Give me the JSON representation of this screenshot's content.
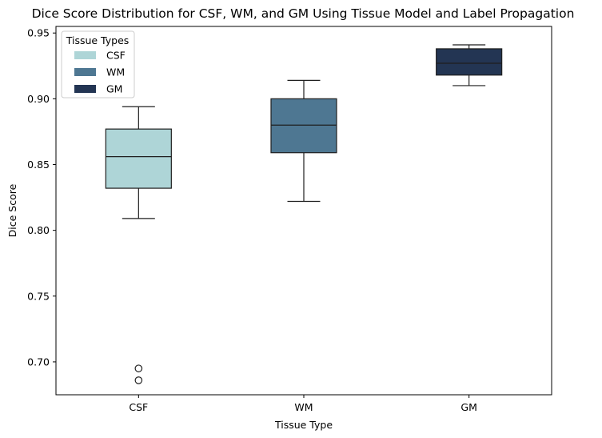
{
  "chart_data": {
    "type": "box",
    "title": "Dice Score Distribution for CSF, WM, and GM Using Tissue Model and Label Propagation",
    "xlabel": "Tissue Type",
    "ylabel": "Dice Score",
    "ylim": [
      0.675,
      0.955
    ],
    "yticks": [
      "0.70",
      "0.75",
      "0.80",
      "0.85",
      "0.90",
      "0.95"
    ],
    "grid": false,
    "legend": {
      "title": "Tissue Types",
      "position": "top-left",
      "entries": [
        "CSF",
        "WM",
        "GM"
      ]
    },
    "categories": [
      "CSF",
      "WM",
      "GM"
    ],
    "boxes": [
      {
        "category": "CSF",
        "color": "#aed5d7",
        "whisker_low": 0.809,
        "q1": 0.832,
        "median": 0.856,
        "q3": 0.877,
        "whisker_high": 0.894,
        "outliers": [
          0.695,
          0.686
        ]
      },
      {
        "category": "WM",
        "color": "#4e7792",
        "whisker_low": 0.822,
        "q1": 0.859,
        "median": 0.88,
        "q3": 0.9,
        "whisker_high": 0.914,
        "outliers": []
      },
      {
        "category": "GM",
        "color": "#233553",
        "whisker_low": 0.91,
        "q1": 0.918,
        "median": 0.927,
        "q3": 0.938,
        "whisker_high": 0.941,
        "outliers": []
      }
    ]
  }
}
